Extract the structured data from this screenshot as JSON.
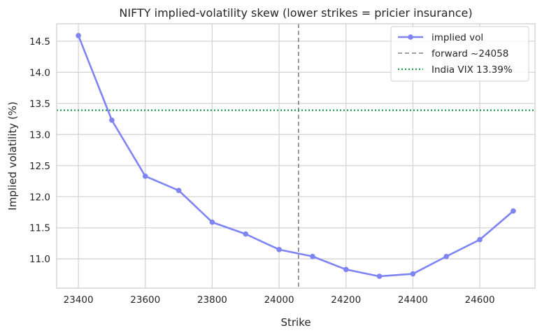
{
  "chart_data": {
    "type": "line",
    "title": "NIFTY implied-volatility skew (lower strikes = pricier insurance)",
    "xlabel": "Strike",
    "ylabel": "Implied volatility (%)",
    "xlim": [
      23335,
      24765
    ],
    "ylim": [
      10.53,
      14.78
    ],
    "x_ticks": [
      23400,
      23600,
      23800,
      24000,
      24200,
      24400,
      24600
    ],
    "y_ticks": [
      11.0,
      11.5,
      12.0,
      12.5,
      13.0,
      13.5,
      14.0,
      14.5
    ],
    "x_tick_labels": [
      "23400",
      "23600",
      "23800",
      "24000",
      "24200",
      "24400",
      "24600"
    ],
    "y_tick_labels": [
      "11.0",
      "11.5",
      "12.0",
      "12.5",
      "13.0",
      "13.5",
      "14.0",
      "14.5"
    ],
    "grid": true,
    "legend_position": "top-right",
    "series": [
      {
        "name": "implied vol",
        "color": "#7f84f5",
        "x": [
          23400,
          23500,
          23600,
          23700,
          23800,
          23900,
          24000,
          24100,
          24200,
          24300,
          24400,
          24500,
          24600,
          24700
        ],
        "y": [
          14.59,
          13.23,
          12.33,
          12.1,
          11.59,
          11.4,
          11.15,
          11.04,
          10.83,
          10.72,
          10.76,
          11.04,
          11.31,
          11.77
        ]
      }
    ],
    "reference_lines": [
      {
        "name": "forward ~24058",
        "orientation": "vertical",
        "value": 24058,
        "color": "#808080",
        "style": "dashed"
      },
      {
        "name": "India VIX 13.39%",
        "orientation": "horizontal",
        "value": 13.39,
        "color": "#1a9e4a",
        "style": "dotted"
      }
    ]
  }
}
